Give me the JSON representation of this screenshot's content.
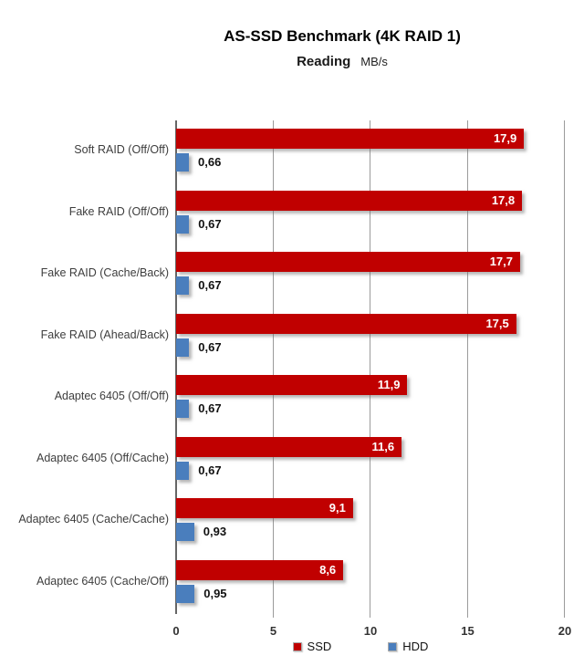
{
  "chart_data": {
    "type": "bar",
    "orientation": "horizontal",
    "title": "AS-SSD Benchmark (4K RAID 1)",
    "subtitle": "Reading",
    "unit": "MB/s",
    "categories": [
      "Soft RAID (Off/Off)",
      "Fake RAID (Off/Off)",
      "Fake RAID (Cache/Back)",
      "Fake RAID (Ahead/Back)",
      "Adaptec 6405 (Off/Off)",
      "Adaptec 6405 (Off/Cache)",
      "Adaptec 6405 (Cache/Cache)",
      "Adaptec 6405 (Cache/Off)"
    ],
    "series": [
      {
        "name": "SSD",
        "color": "#C00000",
        "values": [
          17.9,
          17.8,
          17.7,
          17.5,
          11.9,
          11.6,
          9.1,
          8.6
        ],
        "labels": [
          "17,9",
          "17,8",
          "17,7",
          "17,5",
          "11,9",
          "11,6",
          "9,1",
          "8,6"
        ]
      },
      {
        "name": "HDD",
        "color": "#4A7EBD",
        "values": [
          0.66,
          0.67,
          0.67,
          0.67,
          0.67,
          0.67,
          0.93,
          0.95
        ],
        "labels": [
          "0,66",
          "0,67",
          "0,67",
          "0,67",
          "0,67",
          "0,67",
          "0,93",
          "0,95"
        ]
      }
    ],
    "x_axis": {
      "min": 0,
      "max": 20,
      "ticks": [
        0,
        5,
        10,
        15,
        20
      ],
      "tick_labels": [
        "0",
        "5",
        "10",
        "15",
        "20"
      ]
    },
    "grid": true,
    "legend": {
      "position": "bottom",
      "entries": [
        "SSD",
        "HDD"
      ]
    }
  }
}
